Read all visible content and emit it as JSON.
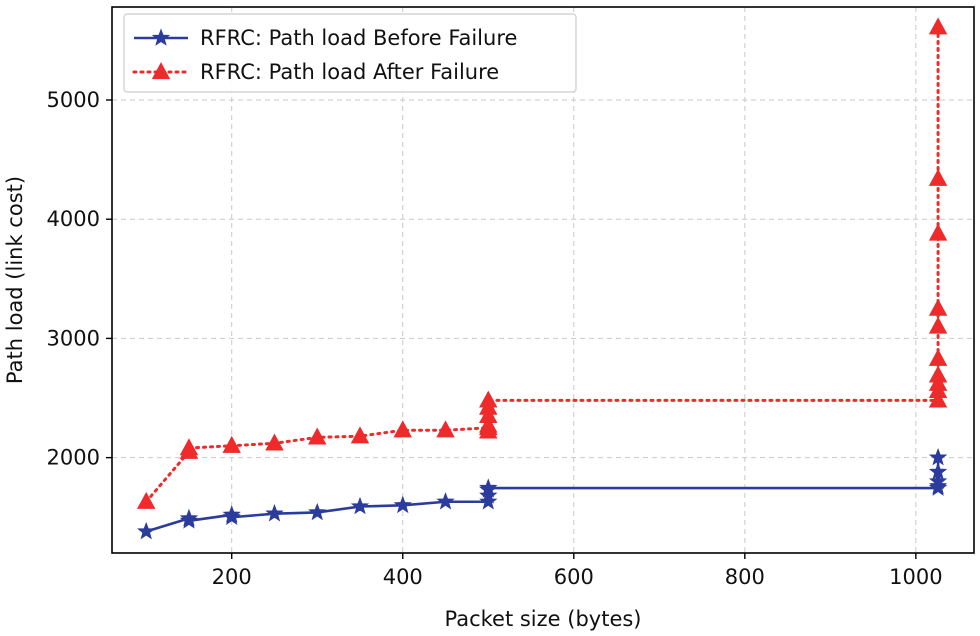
{
  "chart_data": {
    "type": "line",
    "title": "",
    "xlabel": "Packet size (bytes)",
    "ylabel": "Path load (link cost)",
    "xlim": [
      60,
      1068
    ],
    "ylim": [
      1200,
      5780
    ],
    "grid": true,
    "legend_position": "top-left",
    "x_ticks": [
      200,
      400,
      600,
      800,
      1000
    ],
    "y_ticks": [
      2000,
      3000,
      4000,
      5000
    ],
    "series": [
      {
        "name": "RFRC: Path load Before Failure",
        "color": "#2b3c9c",
        "line_style": "solid",
        "marker": "star",
        "points": [
          [
            100,
            1380
          ],
          [
            150,
            1490
          ],
          [
            150,
            1470
          ],
          [
            200,
            1520
          ],
          [
            200,
            1500
          ],
          [
            250,
            1530
          ],
          [
            300,
            1540
          ],
          [
            350,
            1590
          ],
          [
            400,
            1600
          ],
          [
            450,
            1630
          ],
          [
            500,
            1630
          ],
          [
            500,
            1680
          ],
          [
            500,
            1730
          ],
          [
            500,
            1745
          ],
          [
            1026,
            1745
          ],
          [
            1026,
            1760
          ],
          [
            1026,
            1800
          ],
          [
            1026,
            1880
          ],
          [
            1026,
            2000
          ]
        ]
      },
      {
        "name": "RFRC: Path load After Failure",
        "color": "#ee2a2a",
        "line_style": "dotted",
        "marker": "triangle",
        "points": [
          [
            100,
            1630
          ],
          [
            150,
            2050
          ],
          [
            150,
            2080
          ],
          [
            200,
            2100
          ],
          [
            250,
            2120
          ],
          [
            300,
            2170
          ],
          [
            350,
            2180
          ],
          [
            400,
            2230
          ],
          [
            450,
            2230
          ],
          [
            500,
            2250
          ],
          [
            500,
            2220
          ],
          [
            500,
            2270
          ],
          [
            500,
            2350
          ],
          [
            500,
            2420
          ],
          [
            500,
            2480
          ],
          [
            1026,
            2480
          ],
          [
            1026,
            2560
          ],
          [
            1026,
            2620
          ],
          [
            1026,
            2690
          ],
          [
            1026,
            2830
          ],
          [
            1026,
            3100
          ],
          [
            1026,
            3250
          ],
          [
            1026,
            3880
          ],
          [
            1026,
            4340
          ],
          [
            1026,
            5610
          ]
        ]
      }
    ]
  }
}
